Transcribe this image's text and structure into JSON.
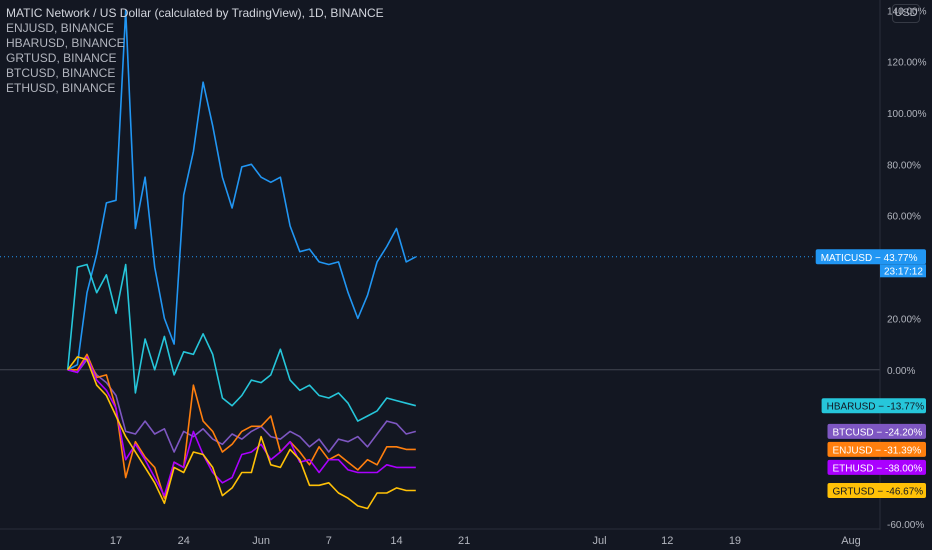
{
  "header": {
    "title": "MATIC Network / US Dollar (calculated by TradingView), 1D, BINANCE",
    "symbols": [
      "ENJUSD, BINANCE",
      "HBARUSD, BINANCE",
      "GRTUSD, BINANCE",
      "BTCUSD, BINANCE",
      "ETHUSD, BINANCE"
    ]
  },
  "currency_label": "USD",
  "countdown": "23:17:12",
  "chart_data": {
    "type": "line",
    "title": "MATIC Network / US Dollar (calculated by TradingView), 1D, BINANCE",
    "x_ticks": [
      "17",
      "24",
      "Jun",
      "7",
      "14",
      "21",
      "Jul",
      "12",
      "19",
      "Aug"
    ],
    "x_tick_day": [
      0,
      7,
      15,
      22,
      29,
      36,
      50,
      57,
      64,
      76
    ],
    "x_range_days": [
      -12,
      79
    ],
    "y_ticks": [
      "140.00%",
      "120.00%",
      "100.00%",
      "80.00%",
      "60.00%",
      "20.00%",
      "0.00%",
      "-60.00%"
    ],
    "y_tick_values": [
      140,
      120,
      100,
      80,
      60,
      20,
      0,
      -60
    ],
    "ylim": [
      -62,
      144
    ],
    "grid": false,
    "series": [
      {
        "name": "MATICUSD",
        "color": "#2196f3",
        "last_label": "43.77%",
        "x": [
          -5,
          -4,
          -3,
          -2,
          -1,
          0,
          1,
          2,
          3,
          4,
          5,
          6,
          7,
          8,
          9,
          10,
          11,
          12,
          13,
          14,
          15,
          16,
          17,
          18,
          19,
          20,
          21,
          22,
          23,
          24,
          25,
          26,
          27,
          28,
          29,
          30,
          31
        ],
        "values": [
          0,
          2,
          30,
          45,
          65,
          66,
          140,
          55,
          75,
          40,
          20,
          10,
          68,
          85,
          112,
          95,
          75,
          63,
          79,
          80,
          75,
          73,
          75,
          56,
          46,
          47,
          42,
          41,
          42,
          30,
          20,
          29,
          42,
          48,
          55,
          42,
          44
        ]
      },
      {
        "name": "HBARUSD",
        "color": "#26c6da",
        "last_label": "-13.77%",
        "x": [
          -5,
          -4,
          -3,
          -2,
          -1,
          0,
          1,
          2,
          3,
          4,
          5,
          6,
          7,
          8,
          9,
          10,
          11,
          12,
          13,
          14,
          15,
          16,
          17,
          18,
          19,
          20,
          21,
          22,
          23,
          24,
          25,
          26,
          27,
          28,
          29,
          30,
          31
        ],
        "values": [
          0,
          40,
          41,
          30,
          37,
          22,
          41,
          -9,
          12,
          0,
          13,
          -2,
          7,
          6,
          14,
          6,
          -11,
          -14,
          -10,
          -4,
          -5,
          -2,
          8,
          -4,
          -8,
          -6,
          -10,
          -11,
          -9,
          -13,
          -20,
          -18,
          -16,
          -11,
          -12,
          -13,
          -14
        ]
      },
      {
        "name": "BTCUSD",
        "color": "#7e57c2",
        "last_label": "-24.20%",
        "x": [
          -5,
          -4,
          -3,
          -2,
          -1,
          0,
          1,
          2,
          3,
          4,
          5,
          6,
          7,
          8,
          9,
          10,
          11,
          12,
          13,
          14,
          15,
          16,
          17,
          18,
          19,
          20,
          21,
          22,
          23,
          24,
          25,
          26,
          27,
          28,
          29,
          30,
          31
        ],
        "values": [
          0,
          -1,
          4,
          -2,
          -5,
          -10,
          -24,
          -25,
          -20,
          -25,
          -23,
          -32,
          -24,
          -26,
          -23,
          -27,
          -29,
          -25,
          -27,
          -24,
          -22,
          -26,
          -27,
          -24,
          -26,
          -30,
          -27,
          -32,
          -27,
          -28,
          -26,
          -30,
          -25,
          -20,
          -21,
          -25,
          -24
        ]
      },
      {
        "name": "ENJUSD",
        "color": "#ff7f0e",
        "last_label": "-31.39%",
        "x": [
          -5,
          -4,
          -3,
          -2,
          -1,
          0,
          1,
          2,
          3,
          4,
          5,
          6,
          7,
          8,
          9,
          10,
          11,
          12,
          13,
          14,
          15,
          16,
          17,
          18,
          19,
          20,
          21,
          22,
          23,
          24,
          25,
          26,
          27,
          28,
          29,
          30,
          31
        ],
        "values": [
          0,
          0,
          6,
          -3,
          -2,
          -15,
          -42,
          -28,
          -34,
          -38,
          -50,
          -36,
          -38,
          -6,
          -20,
          -24,
          -32,
          -29,
          -24,
          -22,
          -22,
          -18,
          -32,
          -28,
          -32,
          -37,
          -30,
          -35,
          -33,
          -36,
          -39,
          -35,
          -37,
          -30,
          -30,
          -31,
          -31
        ]
      },
      {
        "name": "ETHUSD",
        "color": "#aa00ff",
        "last_label": "-38.00%",
        "x": [
          -5,
          -4,
          -3,
          -2,
          -1,
          0,
          1,
          2,
          3,
          4,
          5,
          6,
          7,
          8,
          9,
          10,
          11,
          12,
          13,
          14,
          15,
          16,
          17,
          18,
          19,
          20,
          21,
          22,
          23,
          24,
          25,
          26,
          27,
          28,
          29,
          30,
          31
        ],
        "values": [
          0,
          -1,
          5,
          -4,
          -8,
          -15,
          -35,
          -29,
          -35,
          -42,
          -49,
          -36,
          -38,
          -24,
          -33,
          -40,
          -44,
          -42,
          -33,
          -32,
          -29,
          -35,
          -32,
          -28,
          -36,
          -35,
          -40,
          -35,
          -35,
          -39,
          -40,
          -40,
          -40,
          -37,
          -38,
          -38,
          -38
        ]
      },
      {
        "name": "GRTUSD",
        "color": "#ffc107",
        "last_label": "-46.67%",
        "x": [
          -5,
          -4,
          -3,
          -2,
          -1,
          0,
          1,
          2,
          3,
          4,
          5,
          6,
          7,
          8,
          9,
          10,
          11,
          12,
          13,
          14,
          15,
          16,
          17,
          18,
          19,
          20,
          21,
          22,
          23,
          24,
          25,
          26,
          27,
          28,
          29,
          30,
          31
        ],
        "values": [
          0,
          5,
          4,
          -6,
          -10,
          -18,
          -26,
          -32,
          -38,
          -44,
          -52,
          -38,
          -40,
          -32,
          -33,
          -38,
          -49,
          -46,
          -40,
          -40,
          -26,
          -37,
          -38,
          -31,
          -35,
          -45,
          -45,
          -44,
          -48,
          -50,
          -53,
          -54,
          -48,
          -48,
          -46,
          -47,
          -47
        ]
      }
    ]
  }
}
